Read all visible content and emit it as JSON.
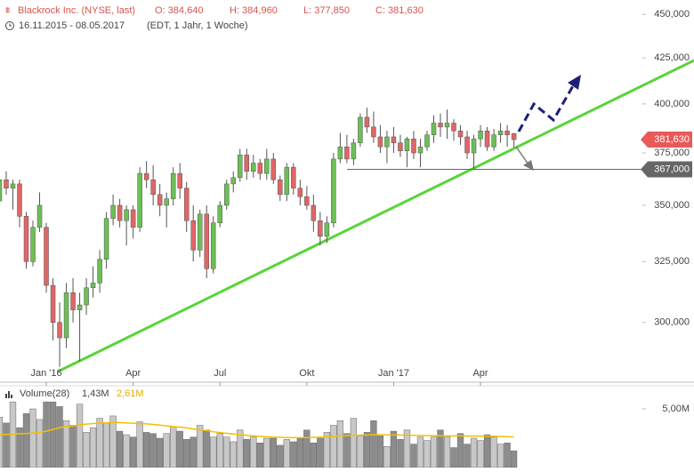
{
  "header": {
    "name": "Blackrock Inc. (NYSE, last)",
    "open": "O: 384,640",
    "high": "H: 384,960",
    "low": "L: 377,850",
    "close": "C: 381,630",
    "range": "16.11.2015 - 08.05.2017",
    "info": "(EDT, 1 Jahr, 1 Woche)"
  },
  "chart_data": {
    "type": "candlestick",
    "log_scale": true,
    "up_color": "#6cbf55",
    "down_color": "#e06666",
    "ylim": [
      277300,
      458600
    ],
    "yticks": [
      {
        "value": 300000,
        "label": "300,000"
      },
      {
        "value": 325000,
        "label": "325,000"
      },
      {
        "value": 350000,
        "label": "350,000"
      },
      {
        "value": 375000,
        "label": "375,000"
      },
      {
        "value": 400000,
        "label": "400,000"
      },
      {
        "value": 425000,
        "label": "425,000"
      },
      {
        "value": 450000,
        "label": "450,000"
      }
    ],
    "xlim": [
      0.07,
      103.96
    ],
    "xticks": [
      {
        "value": 7,
        "label": "Jan '16"
      },
      {
        "value": 20,
        "label": "Apr"
      },
      {
        "value": 33,
        "label": "Jul"
      },
      {
        "value": 46,
        "label": "Okt"
      },
      {
        "value": 59,
        "label": "Jan '17"
      },
      {
        "value": 72,
        "label": "Apr"
      }
    ],
    "ohlc": [
      [
        352000,
        365000,
        350000,
        362000
      ],
      [
        362000,
        366000,
        355000,
        358000
      ],
      [
        358000,
        362000,
        348000,
        360000
      ],
      [
        360000,
        362000,
        340000,
        345000
      ],
      [
        345000,
        347000,
        322000,
        325000
      ],
      [
        325000,
        343000,
        323000,
        340000
      ],
      [
        340000,
        356000,
        338000,
        350000
      ],
      [
        340000,
        342000,
        312000,
        315000
      ],
      [
        315000,
        318000,
        293000,
        300000
      ],
      [
        300000,
        308000,
        283000,
        294000
      ],
      [
        294000,
        316000,
        290000,
        312000
      ],
      [
        312000,
        318000,
        300000,
        305000
      ],
      [
        305000,
        312000,
        285000,
        307000
      ],
      [
        307000,
        318000,
        303000,
        314000
      ],
      [
        314000,
        323000,
        310000,
        316000
      ],
      [
        316000,
        330000,
        312000,
        326000
      ],
      [
        326000,
        347000,
        322000,
        344000
      ],
      [
        344000,
        355000,
        341000,
        350000
      ],
      [
        350000,
        353000,
        340000,
        343000
      ],
      [
        343000,
        350000,
        332000,
        348000
      ],
      [
        348000,
        350000,
        335000,
        340000
      ],
      [
        340000,
        368000,
        338000,
        365000
      ],
      [
        365000,
        371000,
        358000,
        362000
      ],
      [
        362000,
        369000,
        350000,
        355000
      ],
      [
        355000,
        360000,
        345000,
        350000
      ],
      [
        350000,
        356000,
        340000,
        353000
      ],
      [
        353000,
        368000,
        350000,
        365000
      ],
      [
        365000,
        370000,
        353000,
        358000
      ],
      [
        358000,
        361000,
        338000,
        343000
      ],
      [
        343000,
        350000,
        325000,
        330000
      ],
      [
        330000,
        348000,
        327000,
        346000
      ],
      [
        346000,
        350000,
        318000,
        322000
      ],
      [
        322000,
        345000,
        320000,
        342000
      ],
      [
        342000,
        352000,
        340000,
        350000
      ],
      [
        350000,
        362000,
        348000,
        360000
      ],
      [
        360000,
        366000,
        356000,
        363000
      ],
      [
        363000,
        377000,
        361000,
        374000
      ],
      [
        374000,
        377000,
        362000,
        366000
      ],
      [
        366000,
        374000,
        363000,
        370000
      ],
      [
        370000,
        372000,
        362000,
        365000
      ],
      [
        365000,
        377000,
        362000,
        372000
      ],
      [
        372000,
        375000,
        360000,
        362000
      ],
      [
        362000,
        364000,
        352000,
        355000
      ],
      [
        355000,
        370000,
        352000,
        368000
      ],
      [
        368000,
        370000,
        355000,
        358000
      ],
      [
        358000,
        362000,
        350000,
        354000
      ],
      [
        354000,
        359000,
        348000,
        350000
      ],
      [
        350000,
        355000,
        338000,
        343000
      ],
      [
        343000,
        347000,
        332000,
        336000
      ],
      [
        336000,
        345000,
        333000,
        342000
      ],
      [
        342000,
        375000,
        340000,
        372000
      ],
      [
        372000,
        385000,
        370000,
        378000
      ],
      [
        378000,
        384000,
        370000,
        372000
      ],
      [
        372000,
        382000,
        369000,
        380000
      ],
      [
        380000,
        395000,
        378000,
        393000
      ],
      [
        393000,
        398000,
        385000,
        388000
      ],
      [
        388000,
        396000,
        380000,
        383000
      ],
      [
        383000,
        389000,
        375000,
        378000
      ],
      [
        378000,
        386000,
        370000,
        383000
      ],
      [
        383000,
        388000,
        375000,
        380000
      ],
      [
        380000,
        384000,
        373000,
        376000
      ],
      [
        376000,
        383000,
        368000,
        382000
      ],
      [
        382000,
        386000,
        372000,
        375000
      ],
      [
        375000,
        382000,
        368000,
        378000
      ],
      [
        378000,
        386000,
        376000,
        384000
      ],
      [
        384000,
        394000,
        380000,
        390000
      ],
      [
        390000,
        395000,
        383000,
        388000
      ],
      [
        388000,
        397000,
        382000,
        390000
      ],
      [
        390000,
        392000,
        381000,
        386000
      ],
      [
        386000,
        389000,
        379000,
        383000
      ],
      [
        383000,
        386000,
        372000,
        375000
      ],
      [
        375000,
        384000,
        367000,
        382000
      ],
      [
        382000,
        389000,
        378000,
        386000
      ],
      [
        386000,
        388000,
        376000,
        378000
      ],
      [
        378000,
        387000,
        376000,
        384000
      ],
      [
        384000,
        390000,
        380000,
        386000
      ],
      [
        386000,
        389000,
        378000,
        384000
      ],
      [
        384640,
        384960,
        377850,
        381630
      ]
    ],
    "last_price": {
      "value": 381630,
      "label": "381,630"
    },
    "support": {
      "value": 367000,
      "label": "367,000"
    },
    "volume": {
      "label": "Volume(28)",
      "last": "1,43M",
      "average": "2,61M",
      "up_color": "#c8c8c8",
      "down_color": "#8c8c8c",
      "ma_color": "#f5c000",
      "ylim": [
        0,
        5.76
      ],
      "yticks": [
        {
          "value": 5,
          "label": "5,00M"
        }
      ],
      "values": [
        4.3,
        3.8,
        5.6,
        3.4,
        4.6,
        5.0,
        4.1,
        5.6,
        5.6,
        5.2,
        4.0,
        3.6,
        5.4,
        3.0,
        3.4,
        4.2,
        3.8,
        4.4,
        3.1,
        2.8,
        2.6,
        3.9,
        3.0,
        2.9,
        2.5,
        2.9,
        3.5,
        3.1,
        2.4,
        2.6,
        3.6,
        3.2,
        2.6,
        2.9,
        2.6,
        2.2,
        3.2,
        2.4,
        2.6,
        2.1,
        2.5,
        2.5,
        1.9,
        2.4,
        2.2,
        2.5,
        3.2,
        2.1,
        2.5,
        3.0,
        3.6,
        4.0,
        2.9,
        4.2,
        2.7,
        3.0,
        4.0,
        2.7,
        1.8,
        3.1,
        2.4,
        3.2,
        2.0,
        2.6,
        2.3,
        2.6,
        3.2,
        2.6,
        1.7,
        2.9,
        2.0,
        2.5,
        2.3,
        2.8,
        2.6,
        2.0,
        2.1,
        1.43
      ],
      "ma": [
        2.8,
        2.82,
        2.85,
        2.88,
        2.9,
        2.95,
        3.0,
        3.1,
        3.25,
        3.4,
        3.5,
        3.55,
        3.65,
        3.7,
        3.75,
        3.8,
        3.82,
        3.85,
        3.84,
        3.8,
        3.78,
        3.75,
        3.72,
        3.68,
        3.62,
        3.55,
        3.5,
        3.45,
        3.38,
        3.3,
        3.22,
        3.15,
        3.05,
        2.98,
        2.92,
        2.86,
        2.8,
        2.75,
        2.7,
        2.66,
        2.62,
        2.6,
        2.58,
        2.56,
        2.55,
        2.55,
        2.56,
        2.58,
        2.6,
        2.62,
        2.66,
        2.7,
        2.72,
        2.75,
        2.76,
        2.78,
        2.8,
        2.8,
        2.79,
        2.78,
        2.77,
        2.76,
        2.75,
        2.74,
        2.73,
        2.72,
        2.71,
        2.7,
        2.7,
        2.7,
        2.69,
        2.68,
        2.68,
        2.67,
        2.66,
        2.65,
        2.63,
        2.61
      ]
    }
  }
}
